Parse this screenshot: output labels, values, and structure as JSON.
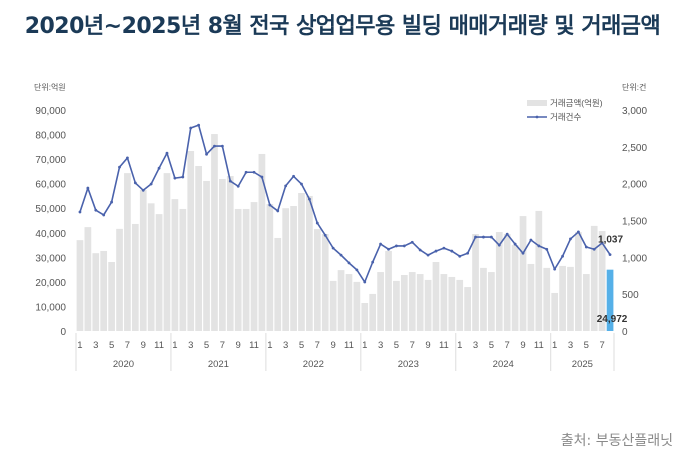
{
  "title": "2020년~2025년 8월 전국 상업업무용 빌딩 매매거래량 및 거래금액",
  "source": "출처: 부동산플래닛",
  "colors": {
    "bar": "#e3e3e3",
    "bar_highlight": "#55b0e8",
    "line": "#4a62ac",
    "axis_text": "#555555",
    "title": "#1b3a57"
  },
  "chart_data": {
    "type": "bar+line",
    "title": "2020년~2025년 8월 전국 상업업무용 빌딩 매매거래량 및 거래금액",
    "left_axis": {
      "unit_label": "단위:억원",
      "min": 0,
      "max": 90000,
      "ticks": [
        "0",
        "10,000",
        "20,000",
        "30,000",
        "40,000",
        "50,000",
        "60,000",
        "70,000",
        "80,000",
        "90,000"
      ]
    },
    "right_axis": {
      "unit_label": "단위:건",
      "min": 0,
      "max": 3000,
      "ticks": [
        "0",
        "500",
        "1,000",
        "1,500",
        "2,000",
        "2,500",
        "3,000"
      ]
    },
    "legend": [
      {
        "name": "거래금액(억원)",
        "type": "bar"
      },
      {
        "name": "거래건수",
        "type": "line"
      }
    ],
    "month_ticks": [
      "1",
      "3",
      "5",
      "7",
      "9",
      "11"
    ],
    "years": [
      {
        "label": "2020",
        "months": 12
      },
      {
        "label": "2021",
        "months": 12
      },
      {
        "label": "2022",
        "months": 12
      },
      {
        "label": "2023",
        "months": 12
      },
      {
        "label": "2024",
        "months": 12
      },
      {
        "label": "2025",
        "months": 8
      }
    ],
    "series": [
      {
        "name": "거래금액(억원)",
        "axis": "left",
        "values": [
          37000,
          42300,
          31700,
          32600,
          28100,
          41600,
          64300,
          43600,
          57400,
          52000,
          47600,
          64300,
          53700,
          49700,
          73300,
          67200,
          61100,
          80200,
          61900,
          63100,
          49700,
          49700,
          52500,
          72100,
          51700,
          37900,
          50000,
          50900,
          56200,
          55000,
          41500,
          39500,
          20400,
          24800,
          23200,
          20000,
          11400,
          15100,
          24000,
          32600,
          20400,
          22800,
          24000,
          23200,
          20800,
          28100,
          23200,
          22000,
          20800,
          17900,
          39500,
          25700,
          24000,
          40300,
          39500,
          35000,
          46800,
          27300,
          48900,
          25700,
          15500,
          26500,
          26100,
          40300,
          23200,
          42800,
          40700,
          24972
        ]
      },
      {
        "name": "거래건수",
        "axis": "right",
        "values": [
          1615,
          1940,
          1640,
          1575,
          1750,
          2225,
          2350,
          2010,
          1910,
          1995,
          2210,
          2415,
          2075,
          2090,
          2755,
          2795,
          2400,
          2510,
          2510,
          2035,
          1965,
          2155,
          2155,
          2090,
          1710,
          1630,
          1970,
          2100,
          1995,
          1790,
          1465,
          1300,
          1125,
          1030,
          925,
          830,
          665,
          935,
          1180,
          1110,
          1155,
          1155,
          1205,
          1100,
          1030,
          1085,
          1125,
          1085,
          1015,
          1055,
          1275,
          1275,
          1275,
          1165,
          1315,
          1180,
          1055,
          1235,
          1155,
          1110,
          840,
          1015,
          1250,
          1345,
          1140,
          1110,
          1195,
          1037
        ]
      }
    ],
    "annotations": [
      {
        "text": "1,037",
        "target": "거래건수 2025-08"
      },
      {
        "text": "24,972",
        "target": "거래금액 2025-08"
      }
    ]
  }
}
